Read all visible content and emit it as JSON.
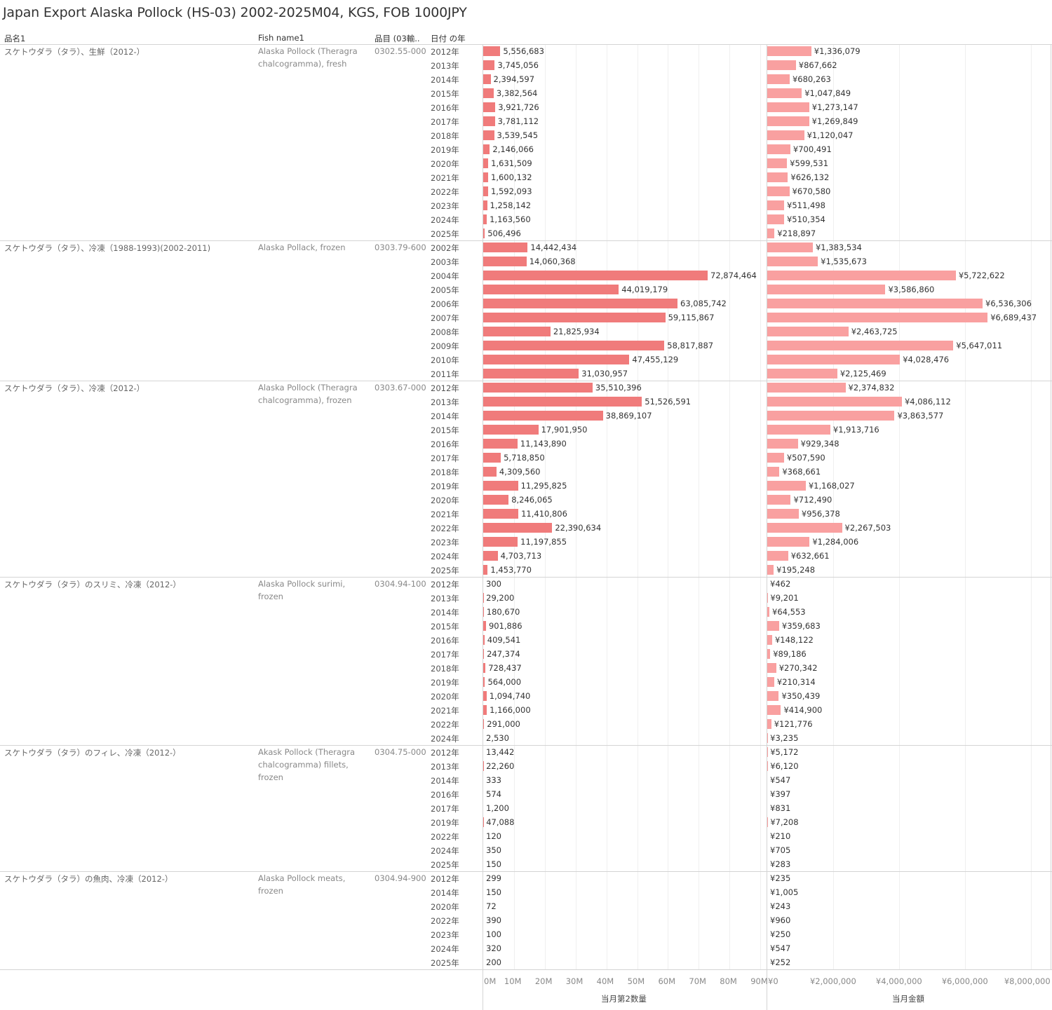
{
  "title": "Japan Export Alaska Pollock (HS-03) 2002-2025M04, KGS, FOB 1000JPY",
  "headers": {
    "name": "品名1",
    "fish": "Fish name1",
    "code": "品目 (03輸..",
    "year": "日付 の年"
  },
  "colors": {
    "qty_bar": "#f07b7b",
    "val_bar": "#f9a0a0"
  },
  "chart_data": {
    "type": "bar",
    "orientation": "horizontal",
    "x_axes": [
      {
        "label": "当月第2数量",
        "range": [
          0,
          92000000
        ],
        "ticks": [
          "0M",
          "10M",
          "20M",
          "30M",
          "40M",
          "50M",
          "60M",
          "70M",
          "80M",
          "90M"
        ],
        "tick_values": [
          0,
          10000000,
          20000000,
          30000000,
          40000000,
          50000000,
          60000000,
          70000000,
          80000000,
          90000000
        ]
      },
      {
        "label": "当月金額",
        "range": [
          0,
          8600000
        ],
        "ticks": [
          "¥0",
          "¥2,000,000",
          "¥4,000,000",
          "¥6,000,000",
          "¥8,000,000"
        ],
        "tick_values": [
          0,
          2000000,
          4000000,
          6000000,
          8000000
        ]
      }
    ],
    "grid": true,
    "groups": [
      {
        "name": "スケトウダラ（タラ）、生鮮（2012-）",
        "fish": "Alaska Pollock (Theragra chalcogramma), fresh",
        "code": "0302.55-000",
        "rows": [
          {
            "year": "2012年",
            "qty": 5556683,
            "qty_label": "5,556,683",
            "val": 1336079,
            "val_label": "¥1,336,079"
          },
          {
            "year": "2013年",
            "qty": 3745056,
            "qty_label": "3,745,056",
            "val": 867662,
            "val_label": "¥867,662"
          },
          {
            "year": "2014年",
            "qty": 2394597,
            "qty_label": "2,394,597",
            "val": 680263,
            "val_label": "¥680,263"
          },
          {
            "year": "2015年",
            "qty": 3382564,
            "qty_label": "3,382,564",
            "val": 1047849,
            "val_label": "¥1,047,849"
          },
          {
            "year": "2016年",
            "qty": 3921726,
            "qty_label": "3,921,726",
            "val": 1273147,
            "val_label": "¥1,273,147"
          },
          {
            "year": "2017年",
            "qty": 3781112,
            "qty_label": "3,781,112",
            "val": 1269849,
            "val_label": "¥1,269,849"
          },
          {
            "year": "2018年",
            "qty": 3539545,
            "qty_label": "3,539,545",
            "val": 1120047,
            "val_label": "¥1,120,047"
          },
          {
            "year": "2019年",
            "qty": 2146066,
            "qty_label": "2,146,066",
            "val": 700491,
            "val_label": "¥700,491"
          },
          {
            "year": "2020年",
            "qty": 1631509,
            "qty_label": "1,631,509",
            "val": 599531,
            "val_label": "¥599,531"
          },
          {
            "year": "2021年",
            "qty": 1600132,
            "qty_label": "1,600,132",
            "val": 626132,
            "val_label": "¥626,132"
          },
          {
            "year": "2022年",
            "qty": 1592093,
            "qty_label": "1,592,093",
            "val": 670580,
            "val_label": "¥670,580"
          },
          {
            "year": "2023年",
            "qty": 1258142,
            "qty_label": "1,258,142",
            "val": 511498,
            "val_label": "¥511,498"
          },
          {
            "year": "2024年",
            "qty": 1163560,
            "qty_label": "1,163,560",
            "val": 510354,
            "val_label": "¥510,354"
          },
          {
            "year": "2025年",
            "qty": 506496,
            "qty_label": "506,496",
            "val": 218897,
            "val_label": "¥218,897"
          }
        ]
      },
      {
        "name": "スケトウダラ（タラ）、冷凍（1988-1993)(2002-2011)",
        "fish": "Alaska Pollack, frozen",
        "code": "0303.79-600",
        "rows": [
          {
            "year": "2002年",
            "qty": 14442434,
            "qty_label": "14,442,434",
            "val": 1383534,
            "val_label": "¥1,383,534"
          },
          {
            "year": "2003年",
            "qty": 14060368,
            "qty_label": "14,060,368",
            "val": 1535673,
            "val_label": "¥1,535,673"
          },
          {
            "year": "2004年",
            "qty": 72874464,
            "qty_label": "72,874,464",
            "val": 5722622,
            "val_label": "¥5,722,622"
          },
          {
            "year": "2005年",
            "qty": 44019179,
            "qty_label": "44,019,179",
            "val": 3586860,
            "val_label": "¥3,586,860"
          },
          {
            "year": "2006年",
            "qty": 63085742,
            "qty_label": "63,085,742",
            "val": 6536306,
            "val_label": "¥6,536,306"
          },
          {
            "year": "2007年",
            "qty": 59115867,
            "qty_label": "59,115,867",
            "val": 6689437,
            "val_label": "¥6,689,437"
          },
          {
            "year": "2008年",
            "qty": 21825934,
            "qty_label": "21,825,934",
            "val": 2463725,
            "val_label": "¥2,463,725"
          },
          {
            "year": "2009年",
            "qty": 58817887,
            "qty_label": "58,817,887",
            "val": 5647011,
            "val_label": "¥5,647,011"
          },
          {
            "year": "2010年",
            "qty": 47455129,
            "qty_label": "47,455,129",
            "val": 4028476,
            "val_label": "¥4,028,476"
          },
          {
            "year": "2011年",
            "qty": 31030957,
            "qty_label": "31,030,957",
            "val": 2125469,
            "val_label": "¥2,125,469"
          }
        ]
      },
      {
        "name": "スケトウダラ（タラ）、冷凍（2012-）",
        "fish": "Alaska Pollock (Theragra chalcogramma), frozen",
        "code": "0303.67-000",
        "rows": [
          {
            "year": "2012年",
            "qty": 35510396,
            "qty_label": "35,510,396",
            "val": 2374832,
            "val_label": "¥2,374,832"
          },
          {
            "year": "2013年",
            "qty": 51526591,
            "qty_label": "51,526,591",
            "val": 4086112,
            "val_label": "¥4,086,112"
          },
          {
            "year": "2014年",
            "qty": 38869107,
            "qty_label": "38,869,107",
            "val": 3863577,
            "val_label": "¥3,863,577"
          },
          {
            "year": "2015年",
            "qty": 17901950,
            "qty_label": "17,901,950",
            "val": 1913716,
            "val_label": "¥1,913,716"
          },
          {
            "year": "2016年",
            "qty": 11143890,
            "qty_label": "11,143,890",
            "val": 929348,
            "val_label": "¥929,348"
          },
          {
            "year": "2017年",
            "qty": 5718850,
            "qty_label": "5,718,850",
            "val": 507590,
            "val_label": "¥507,590"
          },
          {
            "year": "2018年",
            "qty": 4309560,
            "qty_label": "4,309,560",
            "val": 368661,
            "val_label": "¥368,661"
          },
          {
            "year": "2019年",
            "qty": 11295825,
            "qty_label": "11,295,825",
            "val": 1168027,
            "val_label": "¥1,168,027"
          },
          {
            "year": "2020年",
            "qty": 8246065,
            "qty_label": "8,246,065",
            "val": 712490,
            "val_label": "¥712,490"
          },
          {
            "year": "2021年",
            "qty": 11410806,
            "qty_label": "11,410,806",
            "val": 956378,
            "val_label": "¥956,378"
          },
          {
            "year": "2022年",
            "qty": 22390634,
            "qty_label": "22,390,634",
            "val": 2267503,
            "val_label": "¥2,267,503"
          },
          {
            "year": "2023年",
            "qty": 11197855,
            "qty_label": "11,197,855",
            "val": 1284006,
            "val_label": "¥1,284,006"
          },
          {
            "year": "2024年",
            "qty": 4703713,
            "qty_label": "4,703,713",
            "val": 632661,
            "val_label": "¥632,661"
          },
          {
            "year": "2025年",
            "qty": 1453770,
            "qty_label": "1,453,770",
            "val": 195248,
            "val_label": "¥195,248"
          }
        ]
      },
      {
        "name": "スケトウダラ（タラ）のスリミ、冷凍（2012-）",
        "fish": "Alaska Pollock surimi, frozen",
        "code": "0304.94-100",
        "rows": [
          {
            "year": "2012年",
            "qty": 300,
            "qty_label": "300",
            "val": 462,
            "val_label": "¥462"
          },
          {
            "year": "2013年",
            "qty": 29200,
            "qty_label": "29,200",
            "val": 9201,
            "val_label": "¥9,201"
          },
          {
            "year": "2014年",
            "qty": 180670,
            "qty_label": "180,670",
            "val": 64553,
            "val_label": "¥64,553"
          },
          {
            "year": "2015年",
            "qty": 901886,
            "qty_label": "901,886",
            "val": 359683,
            "val_label": "¥359,683"
          },
          {
            "year": "2016年",
            "qty": 409541,
            "qty_label": "409,541",
            "val": 148122,
            "val_label": "¥148,122"
          },
          {
            "year": "2017年",
            "qty": 247374,
            "qty_label": "247,374",
            "val": 89186,
            "val_label": "¥89,186"
          },
          {
            "year": "2018年",
            "qty": 728437,
            "qty_label": "728,437",
            "val": 270342,
            "val_label": "¥270,342"
          },
          {
            "year": "2019年",
            "qty": 564000,
            "qty_label": "564,000",
            "val": 210314,
            "val_label": "¥210,314"
          },
          {
            "year": "2020年",
            "qty": 1094740,
            "qty_label": "1,094,740",
            "val": 350439,
            "val_label": "¥350,439"
          },
          {
            "year": "2021年",
            "qty": 1166000,
            "qty_label": "1,166,000",
            "val": 414900,
            "val_label": "¥414,900"
          },
          {
            "year": "2022年",
            "qty": 291000,
            "qty_label": "291,000",
            "val": 121776,
            "val_label": "¥121,776"
          },
          {
            "year": "2024年",
            "qty": 2530,
            "qty_label": "2,530",
            "val": 3235,
            "val_label": "¥3,235"
          }
        ]
      },
      {
        "name": "スケトウダラ（タラ）のフィレ、冷凍（2012-）",
        "fish": "Akask Pollock (Theragra chalcogramma) fillets, frozen",
        "code": "0304.75-000",
        "rows": [
          {
            "year": "2012年",
            "qty": 13442,
            "qty_label": "13,442",
            "val": 5172,
            "val_label": "¥5,172"
          },
          {
            "year": "2013年",
            "qty": 22260,
            "qty_label": "22,260",
            "val": 6120,
            "val_label": "¥6,120"
          },
          {
            "year": "2014年",
            "qty": 333,
            "qty_label": "333",
            "val": 547,
            "val_label": "¥547"
          },
          {
            "year": "2016年",
            "qty": 574,
            "qty_label": "574",
            "val": 397,
            "val_label": "¥397"
          },
          {
            "year": "2017年",
            "qty": 1200,
            "qty_label": "1,200",
            "val": 831,
            "val_label": "¥831"
          },
          {
            "year": "2019年",
            "qty": 47088,
            "qty_label": "47,088",
            "val": 7208,
            "val_label": "¥7,208"
          },
          {
            "year": "2022年",
            "qty": 120,
            "qty_label": "120",
            "val": 210,
            "val_label": "¥210"
          },
          {
            "year": "2024年",
            "qty": 350,
            "qty_label": "350",
            "val": 705,
            "val_label": "¥705"
          },
          {
            "year": "2025年",
            "qty": 150,
            "qty_label": "150",
            "val": 283,
            "val_label": "¥283"
          }
        ]
      },
      {
        "name": "スケトウダラ（タラ）の魚肉、冷凍（2012-）",
        "fish": "Alaska Pollock meats, frozen",
        "code": "0304.94-900",
        "rows": [
          {
            "year": "2012年",
            "qty": 299,
            "qty_label": "299",
            "val": 235,
            "val_label": "¥235"
          },
          {
            "year": "2014年",
            "qty": 150,
            "qty_label": "150",
            "val": 1005,
            "val_label": "¥1,005"
          },
          {
            "year": "2020年",
            "qty": 72,
            "qty_label": "72",
            "val": 243,
            "val_label": "¥243"
          },
          {
            "year": "2022年",
            "qty": 390,
            "qty_label": "390",
            "val": 960,
            "val_label": "¥960"
          },
          {
            "year": "2023年",
            "qty": 100,
            "qty_label": "100",
            "val": 250,
            "val_label": "¥250"
          },
          {
            "year": "2024年",
            "qty": 320,
            "qty_label": "320",
            "val": 547,
            "val_label": "¥547"
          },
          {
            "year": "2025年",
            "qty": 200,
            "qty_label": "200",
            "val": 252,
            "val_label": "¥252"
          }
        ]
      }
    ]
  }
}
